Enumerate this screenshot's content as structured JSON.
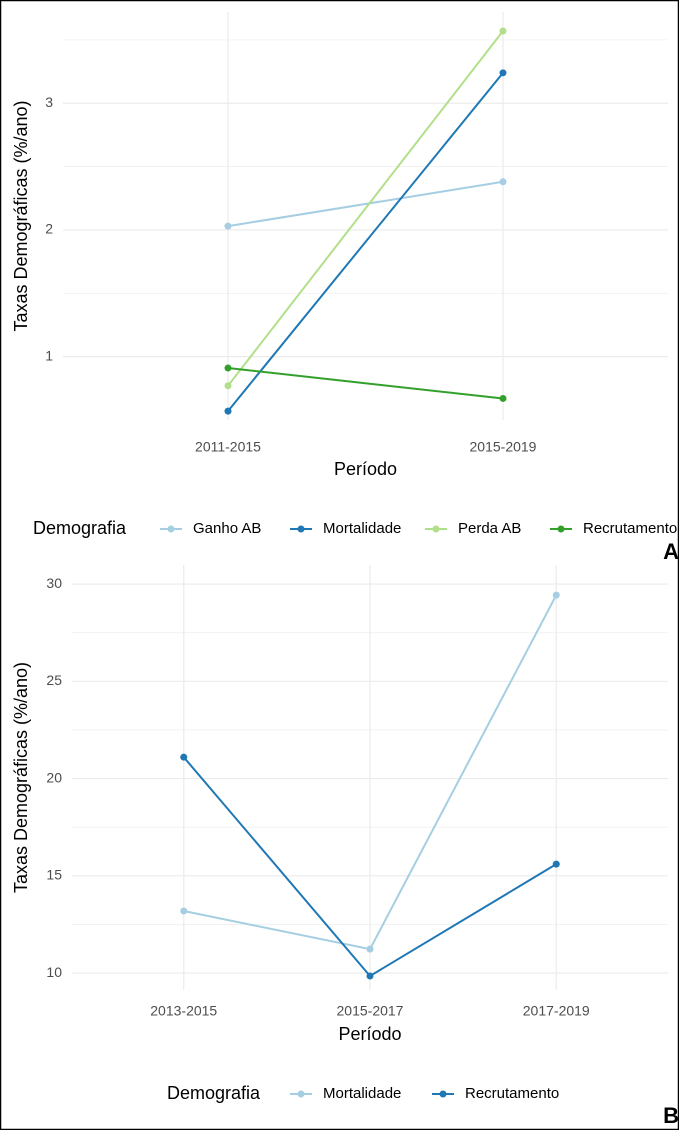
{
  "chart_data": [
    {
      "type": "line",
      "panel_label": "A",
      "x_label": "Período",
      "y_label": "Taxas Demográficas (%/ano)",
      "legend_title": "Demografia",
      "categories": [
        "2011-2015",
        "2015-2019"
      ],
      "series": [
        {
          "name": "Ganho AB",
          "color": "#a6cee3",
          "values": [
            2.03,
            2.38
          ]
        },
        {
          "name": "Mortalidade",
          "color": "#1f78b4",
          "values": [
            0.57,
            3.24
          ]
        },
        {
          "name": "Perda AB",
          "color": "#b2df8a",
          "values": [
            0.77,
            3.57
          ]
        },
        {
          "name": "Recrutamento",
          "color": "#33a02c",
          "values": [
            0.91,
            0.67
          ]
        }
      ],
      "ylim": [
        0.5,
        3.72
      ],
      "yticks": [
        1,
        2,
        3
      ],
      "grid": true,
      "legend_position": "bottom"
    },
    {
      "type": "line",
      "panel_label": "B",
      "x_label": "Período",
      "y_label": "Taxas Demográficas (%/ano)",
      "legend_title": "Demografia",
      "categories": [
        "2013-2015",
        "2015-2017",
        "2017-2019"
      ],
      "series": [
        {
          "name": "Mortalidade",
          "color": "#a6cee3",
          "values": [
            13.19,
            11.23,
            29.43
          ]
        },
        {
          "name": "Recrutamento",
          "color": "#1f78b4",
          "values": [
            21.1,
            9.85,
            15.6
          ]
        }
      ],
      "ylim": [
        9.13,
        30.98
      ],
      "yticks": [
        10,
        15,
        20,
        25,
        30
      ],
      "grid": true,
      "legend_position": "bottom"
    }
  ]
}
